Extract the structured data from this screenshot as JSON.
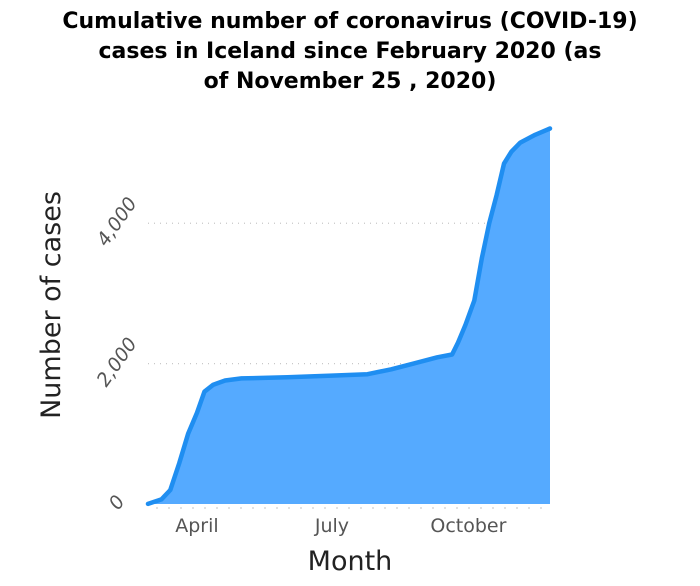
{
  "chart_data": {
    "type": "area",
    "title_lines": [
      "Cumulative number of coronavirus (COVID-19)",
      "cases in Iceland since February 2020 (as",
      "of November 25 , 2020)"
    ],
    "xlabel": "Month",
    "ylabel": "Number of cases",
    "x_ticks": [
      {
        "label": "April",
        "date": "2020-04-01"
      },
      {
        "label": "July",
        "date": "2020-07-01"
      },
      {
        "label": "October",
        "date": "2020-10-01"
      }
    ],
    "y_ticks": [
      {
        "value": 0,
        "label": "0"
      },
      {
        "value": 2000,
        "label": "2,000"
      },
      {
        "value": 4000,
        "label": "4,000"
      }
    ],
    "xlim": [
      "2020-02-28",
      "2020-11-25"
    ],
    "ylim": [
      0,
      5500
    ],
    "grid": "horizontal dotted",
    "colors": {
      "fill": "#55aaff",
      "line": "#1f8ef1"
    },
    "series": [
      {
        "points": [
          {
            "x": "2020-02-28",
            "y": 1
          },
          {
            "x": "2020-03-08",
            "y": 65
          },
          {
            "x": "2020-03-14",
            "y": 200
          },
          {
            "x": "2020-03-20",
            "y": 580
          },
          {
            "x": "2020-03-26",
            "y": 1000
          },
          {
            "x": "2020-04-01",
            "y": 1300
          },
          {
            "x": "2020-04-06",
            "y": 1600
          },
          {
            "x": "2020-04-12",
            "y": 1700
          },
          {
            "x": "2020-04-20",
            "y": 1760
          },
          {
            "x": "2020-05-01",
            "y": 1790
          },
          {
            "x": "2020-06-01",
            "y": 1805
          },
          {
            "x": "2020-07-01",
            "y": 1830
          },
          {
            "x": "2020-07-25",
            "y": 1850
          },
          {
            "x": "2020-08-10",
            "y": 1920
          },
          {
            "x": "2020-08-25",
            "y": 2000
          },
          {
            "x": "2020-09-10",
            "y": 2090
          },
          {
            "x": "2020-09-20",
            "y": 2130
          },
          {
            "x": "2020-09-24",
            "y": 2300
          },
          {
            "x": "2020-09-29",
            "y": 2550
          },
          {
            "x": "2020-10-05",
            "y": 2900
          },
          {
            "x": "2020-10-10",
            "y": 3500
          },
          {
            "x": "2020-10-15",
            "y": 4000
          },
          {
            "x": "2020-10-20",
            "y": 4400
          },
          {
            "x": "2020-10-25",
            "y": 4850
          },
          {
            "x": "2020-10-30",
            "y": 5020
          },
          {
            "x": "2020-11-05",
            "y": 5150
          },
          {
            "x": "2020-11-15",
            "y": 5260
          },
          {
            "x": "2020-11-25",
            "y": 5350
          }
        ]
      }
    ]
  }
}
